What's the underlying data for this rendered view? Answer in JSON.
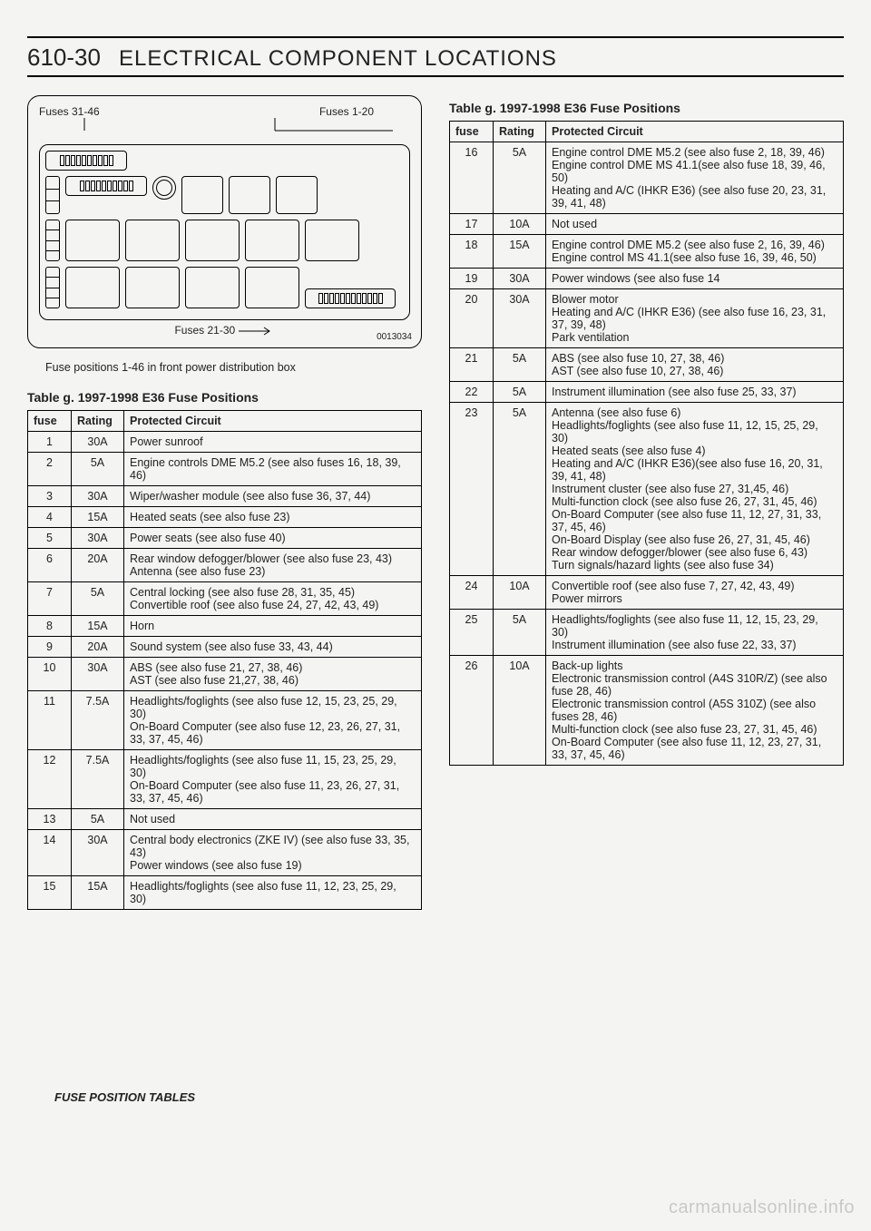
{
  "page_number": "610-30",
  "page_title": "ELECTRICAL COMPONENT LOCATIONS",
  "diagram": {
    "fuses_31_46": "Fuses 31-46",
    "fuses_1_20": "Fuses 1-20",
    "fuses_21_30": "Fuses 21-30",
    "diag_number": "0013034"
  },
  "caption": "Fuse positions 1-46 in front power distribution box",
  "table_title": "Table g.  1997-1998 E36 Fuse Positions",
  "headers": {
    "fuse": "fuse",
    "rating": "Rating",
    "circuit": "Protected Circuit"
  },
  "left_rows": [
    {
      "fuse": "1",
      "rating": "30A",
      "circuit": "Power sunroof"
    },
    {
      "fuse": "2",
      "rating": "5A",
      "circuit": "Engine controls DME M5.2 (see also fuses 16, 18, 39, 46)"
    },
    {
      "fuse": "3",
      "rating": "30A",
      "circuit": "Wiper/washer module (see also fuse 36, 37, 44)"
    },
    {
      "fuse": "4",
      "rating": "15A",
      "circuit": "Heated seats (see also fuse 23)"
    },
    {
      "fuse": "5",
      "rating": "30A",
      "circuit": "Power seats (see also fuse 40)"
    },
    {
      "fuse": "6",
      "rating": "20A",
      "circuit": "Rear window defogger/blower (see also fuse 23, 43)\nAntenna (see also fuse 23)"
    },
    {
      "fuse": "7",
      "rating": "5A",
      "circuit": "Central locking (see also fuse 28, 31, 35, 45)\nConvertible roof (see also fuse 24, 27, 42, 43, 49)"
    },
    {
      "fuse": "8",
      "rating": "15A",
      "circuit": "Horn"
    },
    {
      "fuse": "9",
      "rating": "20A",
      "circuit": "Sound system (see also fuse 33, 43, 44)"
    },
    {
      "fuse": "10",
      "rating": "30A",
      "circuit": "ABS (see also fuse 21, 27, 38, 46)\nAST (see also fuse 21,27, 38, 46)"
    },
    {
      "fuse": "11",
      "rating": "7.5A",
      "circuit": "Headlights/foglights (see also fuse 12, 15, 23, 25, 29, 30)\nOn-Board Computer (see also fuse 12, 23, 26, 27, 31, 33, 37, 45, 46)"
    },
    {
      "fuse": "12",
      "rating": "7.5A",
      "circuit": "Headlights/foglights (see also fuse 11, 15, 23, 25, 29, 30)\nOn-Board Computer (see also fuse 11, 23, 26, 27, 31, 33, 37, 45, 46)"
    },
    {
      "fuse": "13",
      "rating": "5A",
      "circuit": "Not used"
    },
    {
      "fuse": "14",
      "rating": "30A",
      "circuit": "Central body electronics (ZKE IV) (see also fuse 33, 35, 43)\nPower windows (see also fuse 19)"
    },
    {
      "fuse": "15",
      "rating": "15A",
      "circuit": "Headlights/foglights (see also fuse 11, 12, 23, 25, 29, 30)"
    }
  ],
  "right_rows": [
    {
      "fuse": "16",
      "rating": "5A",
      "circuit": "Engine control DME M5.2 (see also fuse 2, 18, 39, 46)\nEngine control DME MS 41.1(see also fuse 18, 39, 46, 50)\nHeating and A/C (IHKR E36) (see also fuse 20, 23, 31, 39, 41, 48)"
    },
    {
      "fuse": "17",
      "rating": "10A",
      "circuit": "Not used"
    },
    {
      "fuse": "18",
      "rating": "15A",
      "circuit": "Engine control DME M5.2 (see also fuse 2, 16, 39, 46)\nEngine control MS 41.1(see also fuse 16, 39, 46, 50)"
    },
    {
      "fuse": "19",
      "rating": "30A",
      "circuit": "Power windows (see also fuse 14"
    },
    {
      "fuse": "20",
      "rating": "30A",
      "circuit": "Blower motor\nHeating and A/C (IHKR E36) (see also fuse 16, 23, 31, 37, 39, 48)\nPark ventilation"
    },
    {
      "fuse": "21",
      "rating": "5A",
      "circuit": "ABS (see also fuse 10, 27, 38, 46)\nAST (see also fuse 10, 27, 38, 46)"
    },
    {
      "fuse": "22",
      "rating": "5A",
      "circuit": "Instrument illumination (see also fuse 25, 33, 37)"
    },
    {
      "fuse": "23",
      "rating": "5A",
      "circuit": "Antenna (see also fuse 6)\nHeadlights/foglights (see also fuse 11, 12, 15, 25, 29, 30)\nHeated seats (see also fuse 4)\nHeating and A/C (IHKR E36)(see also fuse 16, 20, 31, 39, 41, 48)\nInstrument cluster (see also fuse 27, 31,45, 46)\nMulti-function clock (see also fuse 26, 27, 31, 45, 46)\nOn-Board Computer (see also fuse 11, 12, 27, 31, 33, 37, 45, 46)\nOn-Board Display (see also fuse 26, 27, 31, 45, 46)\nRear window defogger/blower (see also fuse 6, 43)\nTurn signals/hazard lights (see also fuse 34)"
    },
    {
      "fuse": "24",
      "rating": "10A",
      "circuit": "Convertible roof (see also fuse 7, 27, 42, 43, 49)\nPower mirrors"
    },
    {
      "fuse": "25",
      "rating": "5A",
      "circuit": "Headlights/foglights (see also fuse 11, 12, 15, 23, 29, 30)\nInstrument illumination (see also fuse 22, 33, 37)"
    },
    {
      "fuse": "26",
      "rating": "10A",
      "circuit": "Back-up lights\nElectronic transmission control (A4S 310R/Z) (see also fuse 28, 46)\nElectronic transmission control (A5S 310Z) (see also fuses 28, 46)\nMulti-function clock (see also fuse 23, 27, 31, 45, 46)\nOn-Board Computer (see also fuse 11, 12, 23, 27, 31, 33, 37, 45, 46)"
    }
  ],
  "footer": "FUSE POSITION TABLES",
  "watermark": "carmanualsonline.info"
}
